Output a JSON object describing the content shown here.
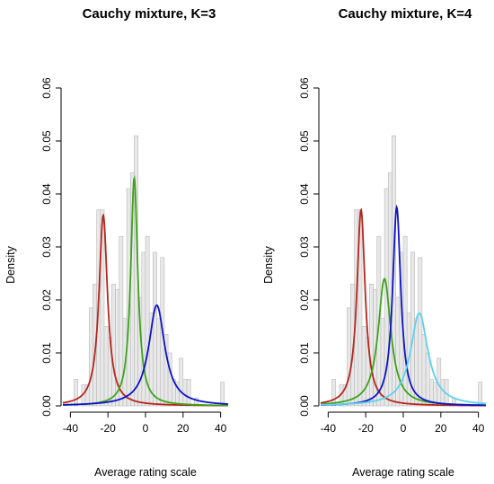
{
  "chart_data": [
    {
      "type": "histogram",
      "title": "Cauchy mixture, K=3",
      "xlabel": "Average rating scale",
      "ylabel": "Density",
      "xlim": [
        -44,
        44
      ],
      "ylim": [
        0,
        0.06
      ],
      "x_ticks": [
        -40,
        -20,
        0,
        20,
        40
      ],
      "y_ticks": [
        0.0,
        0.01,
        0.02,
        0.03,
        0.04,
        0.05,
        0.06
      ],
      "x_tick_labels": [
        "-40",
        "-20",
        "0",
        "20",
        "40"
      ],
      "y_tick_labels": [
        "0.00",
        "0.01",
        "0.02",
        "0.03",
        "0.04",
        "0.05",
        "0.06"
      ],
      "bin_width": 2,
      "bins": [
        {
          "x0": -38,
          "density": 0.005
        },
        {
          "x0": -34,
          "density": 0.004
        },
        {
          "x0": -32,
          "density": 0.004
        },
        {
          "x0": -30,
          "density": 0.0185
        },
        {
          "x0": -28,
          "density": 0.023
        },
        {
          "x0": -26,
          "density": 0.037
        },
        {
          "x0": -24,
          "density": 0.037
        },
        {
          "x0": -22,
          "density": 0.015
        },
        {
          "x0": -20,
          "density": 0.013
        },
        {
          "x0": -18,
          "density": 0.023
        },
        {
          "x0": -16,
          "density": 0.022
        },
        {
          "x0": -14,
          "density": 0.032
        },
        {
          "x0": -12,
          "density": 0.0165
        },
        {
          "x0": -10,
          "density": 0.041
        },
        {
          "x0": -8,
          "density": 0.044
        },
        {
          "x0": -6,
          "density": 0.051
        },
        {
          "x0": -4,
          "density": 0.0205
        },
        {
          "x0": -2,
          "density": 0.029
        },
        {
          "x0": 0,
          "density": 0.032
        },
        {
          "x0": 2,
          "density": 0.0175
        },
        {
          "x0": 4,
          "density": 0.029
        },
        {
          "x0": 6,
          "density": 0.0165
        },
        {
          "x0": 8,
          "density": 0.028
        },
        {
          "x0": 10,
          "density": 0.0135
        },
        {
          "x0": 12,
          "density": 0.01
        },
        {
          "x0": 14,
          "density": 0.005
        },
        {
          "x0": 16,
          "density": 0.0045
        },
        {
          "x0": 18,
          "density": 0.009
        },
        {
          "x0": 20,
          "density": 0.005
        },
        {
          "x0": 22,
          "density": 0.005
        },
        {
          "x0": 26,
          "density": 0.0015
        },
        {
          "x0": 40,
          "density": 0.0045
        }
      ],
      "components": [
        {
          "location": -22.5,
          "peak": 0.036,
          "color": "#b5271e",
          "glow": "#ffb3d9"
        },
        {
          "location": -6,
          "peak": 0.043,
          "color": "#3fa319",
          "glow": "#8ff5e6"
        },
        {
          "location": 6,
          "peak": 0.019,
          "color": "#0f12c8",
          "glow": "#b8f0ff"
        }
      ]
    },
    {
      "type": "histogram",
      "title": "Cauchy mixture, K=4",
      "xlabel": "Average rating scale",
      "ylabel": "Density",
      "xlim": [
        -44,
        44
      ],
      "ylim": [
        0,
        0.06
      ],
      "x_ticks": [
        -40,
        -20,
        0,
        20,
        40
      ],
      "y_ticks": [
        0.0,
        0.01,
        0.02,
        0.03,
        0.04,
        0.05,
        0.06
      ],
      "x_tick_labels": [
        "-40",
        "-20",
        "0",
        "20",
        "40"
      ],
      "y_tick_labels": [
        "0.00",
        "0.01",
        "0.02",
        "0.03",
        "0.04",
        "0.05",
        "0.06"
      ],
      "bin_width": 2,
      "bins": [
        {
          "x0": -38,
          "density": 0.005
        },
        {
          "x0": -34,
          "density": 0.004
        },
        {
          "x0": -32,
          "density": 0.004
        },
        {
          "x0": -30,
          "density": 0.0185
        },
        {
          "x0": -28,
          "density": 0.023
        },
        {
          "x0": -26,
          "density": 0.037
        },
        {
          "x0": -24,
          "density": 0.037
        },
        {
          "x0": -22,
          "density": 0.015
        },
        {
          "x0": -20,
          "density": 0.013
        },
        {
          "x0": -18,
          "density": 0.023
        },
        {
          "x0": -16,
          "density": 0.022
        },
        {
          "x0": -14,
          "density": 0.032
        },
        {
          "x0": -12,
          "density": 0.0165
        },
        {
          "x0": -10,
          "density": 0.041
        },
        {
          "x0": -8,
          "density": 0.044
        },
        {
          "x0": -6,
          "density": 0.051
        },
        {
          "x0": -4,
          "density": 0.0205
        },
        {
          "x0": -2,
          "density": 0.029
        },
        {
          "x0": 0,
          "density": 0.032
        },
        {
          "x0": 2,
          "density": 0.0175
        },
        {
          "x0": 4,
          "density": 0.029
        },
        {
          "x0": 6,
          "density": 0.0165
        },
        {
          "x0": 8,
          "density": 0.028
        },
        {
          "x0": 10,
          "density": 0.0135
        },
        {
          "x0": 12,
          "density": 0.01
        },
        {
          "x0": 14,
          "density": 0.005
        },
        {
          "x0": 16,
          "density": 0.0045
        },
        {
          "x0": 18,
          "density": 0.009
        },
        {
          "x0": 20,
          "density": 0.005
        },
        {
          "x0": 22,
          "density": 0.005
        },
        {
          "x0": 26,
          "density": 0.0015
        },
        {
          "x0": 40,
          "density": 0.0045
        }
      ],
      "components": [
        {
          "location": -22.5,
          "peak": 0.037,
          "color": "#b5271e",
          "glow": "#ffb3d9"
        },
        {
          "location": -10,
          "peak": 0.024,
          "color": "#3fa319",
          "glow": "#8ff5e6"
        },
        {
          "location": -3.5,
          "peak": 0.0375,
          "color": "#0f12c8",
          "glow": "#b8f0ff"
        },
        {
          "location": 8.5,
          "peak": 0.0175,
          "color": "#5fd0f0",
          "glow": "#a8fff0"
        }
      ]
    }
  ]
}
